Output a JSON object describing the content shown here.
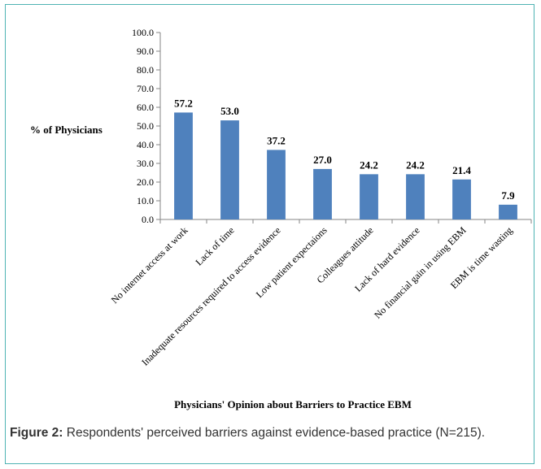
{
  "caption": {
    "label": "Figure 2:",
    "text": " Respondents' perceived barriers against evidence-based practice (N=215)."
  },
  "chart_data": {
    "type": "bar",
    "title": "",
    "xlabel": "Physicians' Opinion about Barriers to Practice EBM",
    "ylabel": "% of Physicians",
    "ylim": [
      0,
      100
    ],
    "yticks": [
      "0.0",
      "10.0",
      "20.0",
      "30.0",
      "40.0",
      "50.0",
      "60.0",
      "70.0",
      "80.0",
      "90.0",
      "100.0"
    ],
    "categories": [
      "No internet access at work",
      "Lack of time",
      "Inadequate resources required to access evidence",
      "Low patient expectaions",
      "Colleagues attitude",
      "Lack of hard evidence",
      "No financial gain  in using EBM",
      "EBM is time wasting"
    ],
    "values": [
      57.2,
      53.0,
      37.2,
      27.0,
      24.2,
      24.2,
      21.4,
      7.9
    ],
    "data_labels": [
      "57.2",
      "53.0",
      "37.2",
      "27.0",
      "24.2",
      "24.2",
      "21.4",
      "7.9"
    ],
    "bar_color": "#4f81bd",
    "grid": false,
    "legend": "none"
  }
}
